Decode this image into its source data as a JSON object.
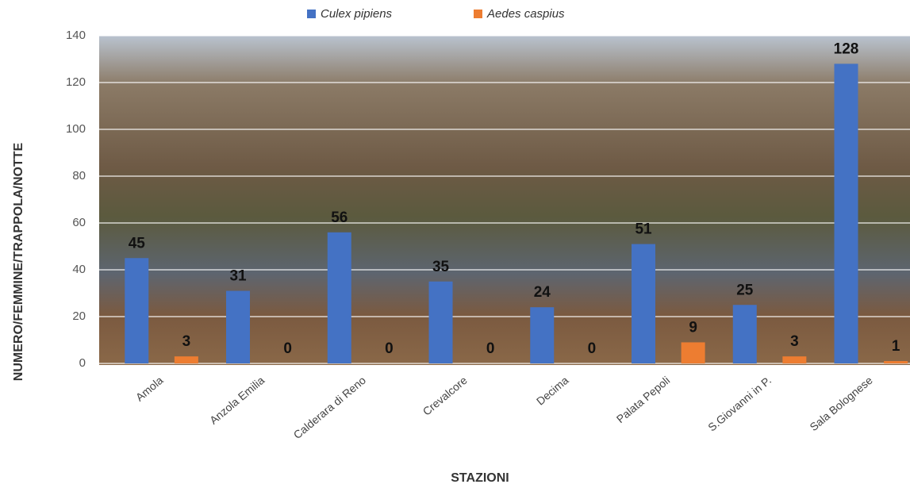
{
  "chart_data": {
    "type": "bar",
    "categories": [
      "Amola",
      "Anzola Emilia",
      "Calderara di Reno",
      "Crevalcore",
      "Decima",
      "Palata Pepoli",
      "S.Giovanni in P.",
      "Sala Bolognese"
    ],
    "series": [
      {
        "name": "Culex pipiens",
        "color": "#4472c4",
        "values": [
          45,
          31,
          56,
          35,
          24,
          51,
          25,
          128
        ]
      },
      {
        "name": "Aedes caspius",
        "color": "#ed7d31",
        "values": [
          3,
          0,
          0,
          0,
          0,
          9,
          3,
          1
        ]
      }
    ],
    "x_label": "STAZIONI",
    "y_label": "NUMERO/FEMMINE/TRAPPOLA/NOTTE",
    "ylim": [
      0,
      140
    ],
    "yticks": [
      0,
      20,
      40,
      60,
      80,
      100,
      120,
      140
    ],
    "grid": true,
    "legend": "top"
  }
}
